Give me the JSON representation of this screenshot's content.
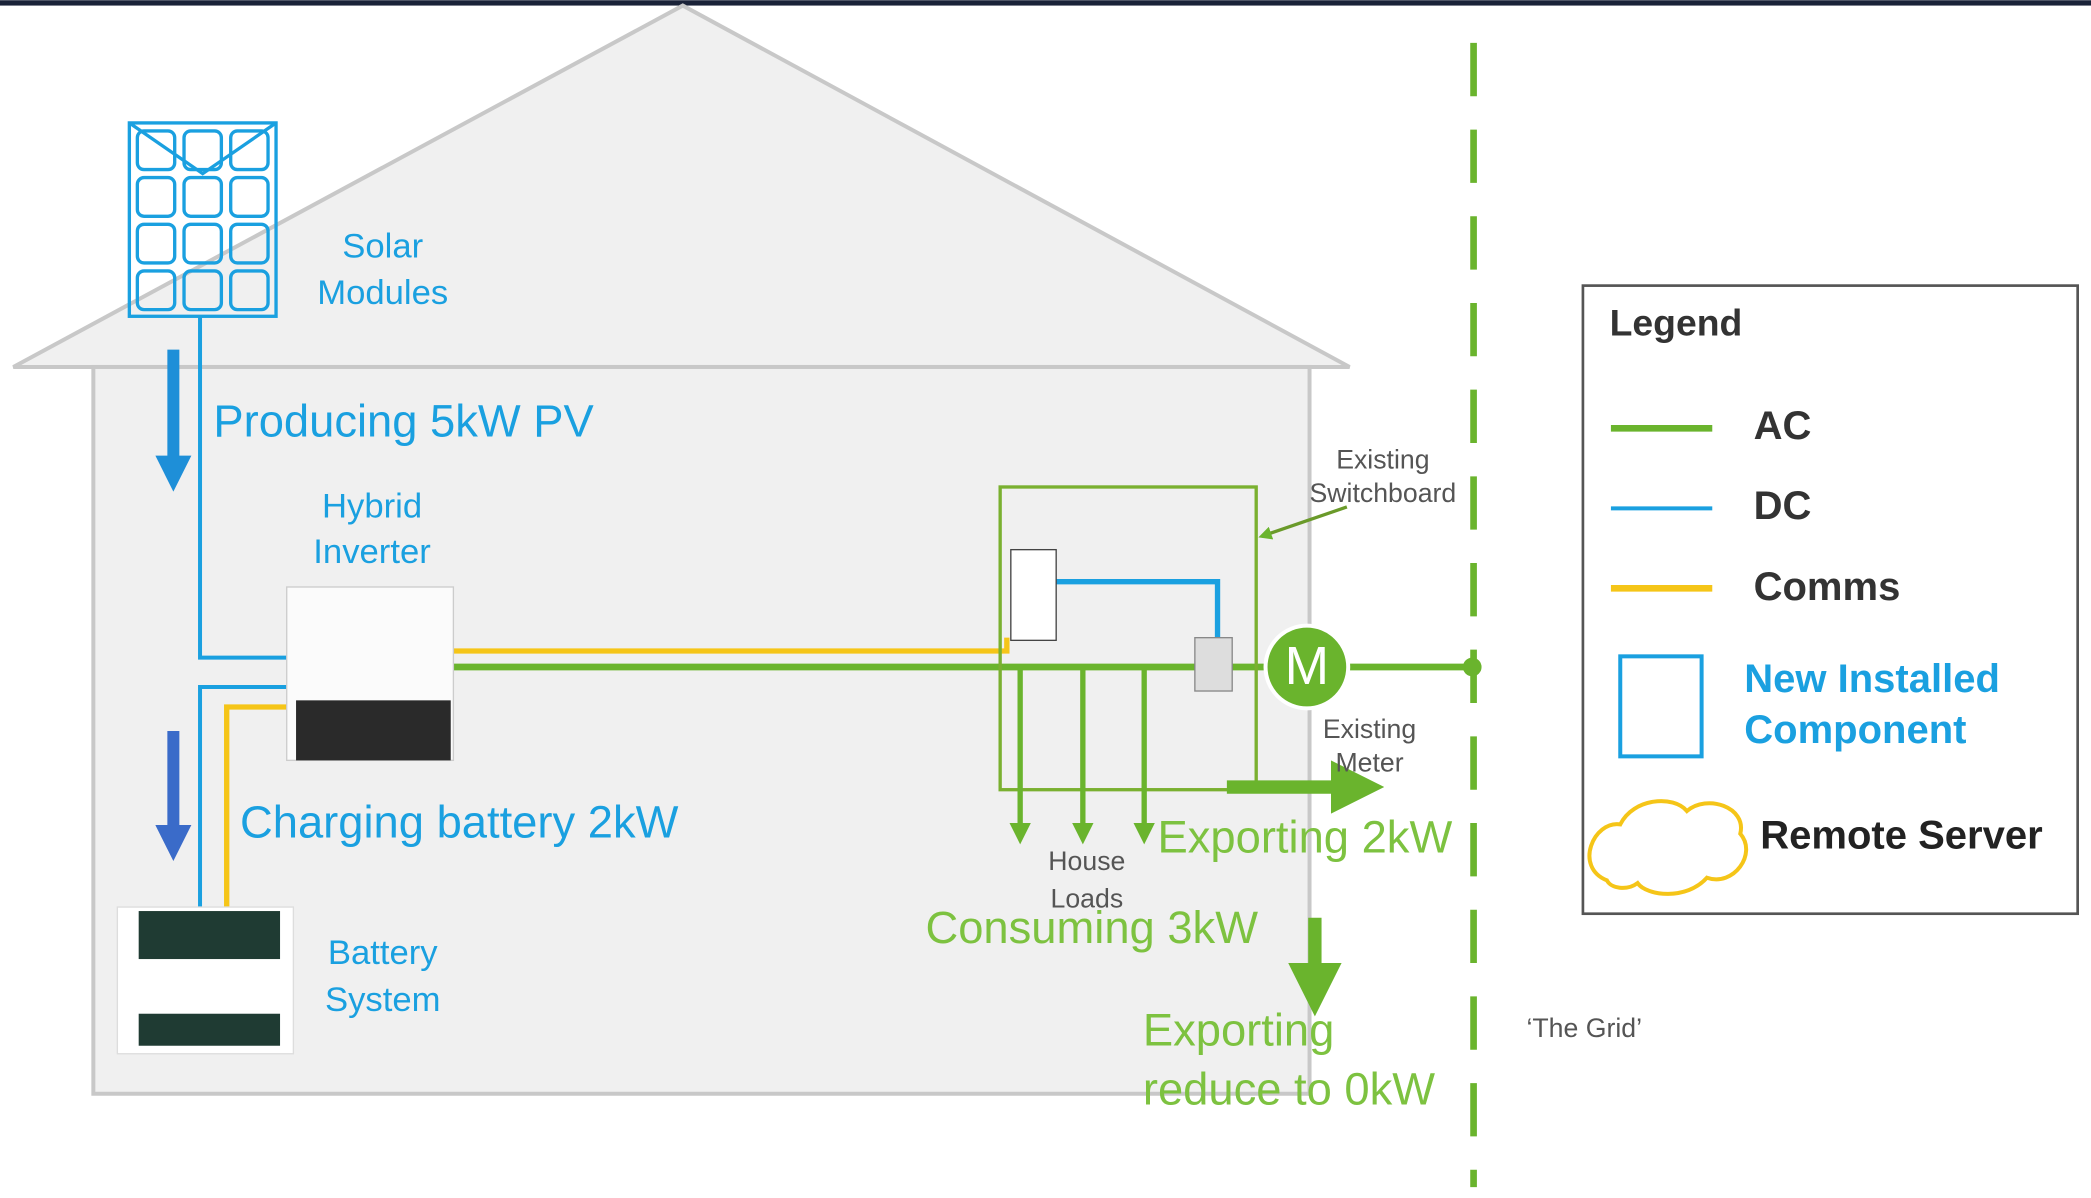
{
  "labels": {
    "solar_modules": [
      "Solar",
      "Modules"
    ],
    "hybrid_inverter": [
      "Hybrid",
      "Inverter"
    ],
    "battery_system": [
      "Battery",
      "System"
    ],
    "existing_switchboard": [
      "Existing",
      "Switchboard"
    ],
    "existing_meter": [
      "Existing",
      "Meter"
    ],
    "house_loads": [
      "House",
      "Loads"
    ],
    "meter_symbol": "M",
    "the_grid": "‘The Grid’"
  },
  "annotations": {
    "producing": "Producing 5kW PV",
    "charging": "Charging battery 2kW",
    "exporting": "Exporting 2kW",
    "consuming": "Consuming 3kW",
    "exporting_reduce": [
      "Exporting",
      "reduce to 0kW"
    ]
  },
  "legend": {
    "title": "Legend",
    "items": [
      {
        "label": [
          "AC"
        ]
      },
      {
        "label": [
          "DC"
        ]
      },
      {
        "label": [
          "Comms"
        ]
      },
      {
        "label": [
          "New Installed",
          "Component"
        ]
      },
      {
        "label": [
          "Remote Server"
        ]
      }
    ]
  }
}
